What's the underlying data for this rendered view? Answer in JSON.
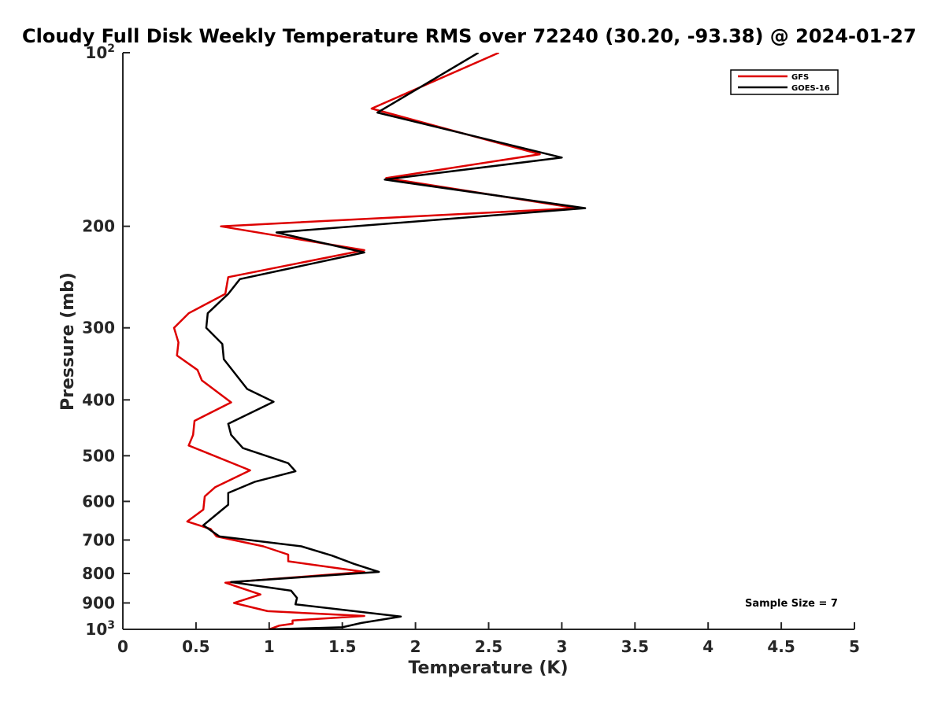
{
  "chart_data": {
    "type": "line",
    "title": "Cloudy Full Disk Weekly Temperature RMS over 72240 (30.20, -93.38) @ 2024-01-27",
    "xlabel": "Temperature (K)",
    "ylabel": "Pressure (mb)",
    "xlim": [
      0,
      5
    ],
    "ylim": [
      100,
      1000
    ],
    "y_scale": "log",
    "y_reversed": true,
    "grid": false,
    "legend_position": "top-right",
    "x_ticks": [
      {
        "value": 0,
        "label": "0"
      },
      {
        "value": 0.5,
        "label": "0.5"
      },
      {
        "value": 1,
        "label": "1"
      },
      {
        "value": 1.5,
        "label": "1.5"
      },
      {
        "value": 2,
        "label": "2"
      },
      {
        "value": 2.5,
        "label": "2.5"
      },
      {
        "value": 3,
        "label": "3"
      },
      {
        "value": 3.5,
        "label": "3.5"
      },
      {
        "value": 4,
        "label": "4"
      },
      {
        "value": 4.5,
        "label": "4.5"
      },
      {
        "value": 5,
        "label": "5"
      }
    ],
    "y_ticks": [
      {
        "value": 100,
        "label": "10",
        "sup": "2"
      },
      {
        "value": 200,
        "label": "200"
      },
      {
        "value": 300,
        "label": "300"
      },
      {
        "value": 400,
        "label": "400"
      },
      {
        "value": 500,
        "label": "500"
      },
      {
        "value": 600,
        "label": "600"
      },
      {
        "value": 700,
        "label": "700"
      },
      {
        "value": 800,
        "label": "800"
      },
      {
        "value": 900,
        "label": "900"
      },
      {
        "value": 1000,
        "label": "10",
        "sup": "3"
      }
    ],
    "annotation": "Sample Size = 7",
    "series": [
      {
        "name": "GFS",
        "color": "#dd0000",
        "points": [
          [
            2.57,
            100
          ],
          [
            1.7,
            125
          ],
          [
            2.85,
            150
          ],
          [
            1.8,
            165
          ],
          [
            3.1,
            186
          ],
          [
            0.67,
            200
          ],
          [
            1.65,
            220
          ],
          [
            0.72,
            245
          ],
          [
            0.7,
            262
          ],
          [
            0.45,
            283
          ],
          [
            0.35,
            300
          ],
          [
            0.38,
            318
          ],
          [
            0.37,
            335
          ],
          [
            0.51,
            355
          ],
          [
            0.54,
            370
          ],
          [
            0.74,
            404
          ],
          [
            0.49,
            435
          ],
          [
            0.48,
            460
          ],
          [
            0.45,
            480
          ],
          [
            0.87,
            530
          ],
          [
            0.63,
            567
          ],
          [
            0.56,
            588
          ],
          [
            0.55,
            620
          ],
          [
            0.44,
            650
          ],
          [
            0.6,
            670
          ],
          [
            0.64,
            690
          ],
          [
            0.96,
            718
          ],
          [
            1.13,
            742
          ],
          [
            1.13,
            762
          ],
          [
            1.65,
            795
          ],
          [
            0.7,
            830
          ],
          [
            0.94,
            870
          ],
          [
            0.76,
            900
          ],
          [
            0.99,
            930
          ],
          [
            1.65,
            948
          ],
          [
            1.16,
            965
          ],
          [
            1.16,
            978
          ],
          [
            1.07,
            985
          ],
          [
            1.0,
            1000
          ]
        ]
      },
      {
        "name": "GOES-16",
        "color": "#000000",
        "points": [
          [
            2.43,
            100
          ],
          [
            1.74,
            127
          ],
          [
            3.0,
            152
          ],
          [
            1.79,
            166
          ],
          [
            3.16,
            186
          ],
          [
            1.05,
            205
          ],
          [
            1.65,
            222
          ],
          [
            0.8,
            247
          ],
          [
            0.72,
            262
          ],
          [
            0.58,
            283
          ],
          [
            0.57,
            300
          ],
          [
            0.68,
            320
          ],
          [
            0.69,
            340
          ],
          [
            0.85,
            383
          ],
          [
            1.03,
            403
          ],
          [
            0.72,
            440
          ],
          [
            0.74,
            460
          ],
          [
            0.82,
            485
          ],
          [
            1.13,
            515
          ],
          [
            1.18,
            532
          ],
          [
            0.9,
            555
          ],
          [
            0.72,
            580
          ],
          [
            0.72,
            608
          ],
          [
            0.63,
            635
          ],
          [
            0.55,
            660
          ],
          [
            0.66,
            690
          ],
          [
            1.22,
            718
          ],
          [
            1.43,
            745
          ],
          [
            1.58,
            770
          ],
          [
            1.75,
            795
          ],
          [
            0.74,
            828
          ],
          [
            1.15,
            857
          ],
          [
            1.19,
            882
          ],
          [
            1.18,
            905
          ],
          [
            1.9,
            950
          ],
          [
            1.63,
            975
          ],
          [
            1.5,
            992
          ],
          [
            1.0,
            1000
          ]
        ]
      }
    ]
  }
}
